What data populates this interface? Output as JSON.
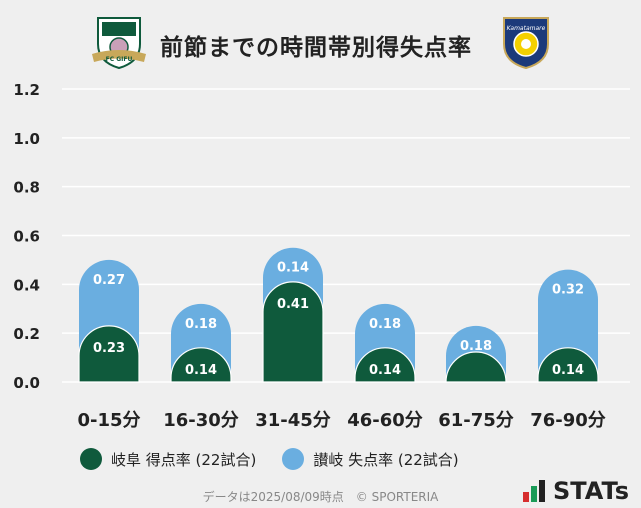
{
  "header": {
    "title": "前節までの時間帯別得失点率",
    "left_logo_label": "FC GIFU",
    "right_logo_label": "Kamatamare"
  },
  "colors": {
    "home": "#0f5a3c",
    "away": "#6aaee0",
    "background": "#efefef"
  },
  "chart_data": {
    "type": "bar",
    "categories": [
      "0-15分",
      "16-30分",
      "31-45分",
      "46-60分",
      "61-75分",
      "76-90分"
    ],
    "series": [
      {
        "name": "岐阜 得点率 (22試合)",
        "values": [
          0.23,
          0.14,
          0.41,
          0.14,
          0.05,
          0.14
        ],
        "labels": [
          "0.23",
          "0.14",
          "0.41",
          "0.14",
          "",
          "0.14"
        ]
      },
      {
        "name": "讃岐 失点率 (22試合)",
        "values": [
          0.27,
          0.18,
          0.14,
          0.18,
          0.18,
          0.32
        ],
        "labels": [
          "0.27",
          "0.18",
          "0.14",
          "0.18",
          "0.18",
          "0.32"
        ]
      }
    ],
    "stacked": true,
    "ylim": [
      0,
      1.2
    ],
    "yticks": [
      "0.0",
      "0.2",
      "0.4",
      "0.6",
      "0.8",
      "1.0",
      "1.2"
    ],
    "grid": true,
    "legend_position": "bottom"
  },
  "footer": {
    "source": "データは2025/08/09時点　© SPORTERIA",
    "brand": "STATs"
  }
}
